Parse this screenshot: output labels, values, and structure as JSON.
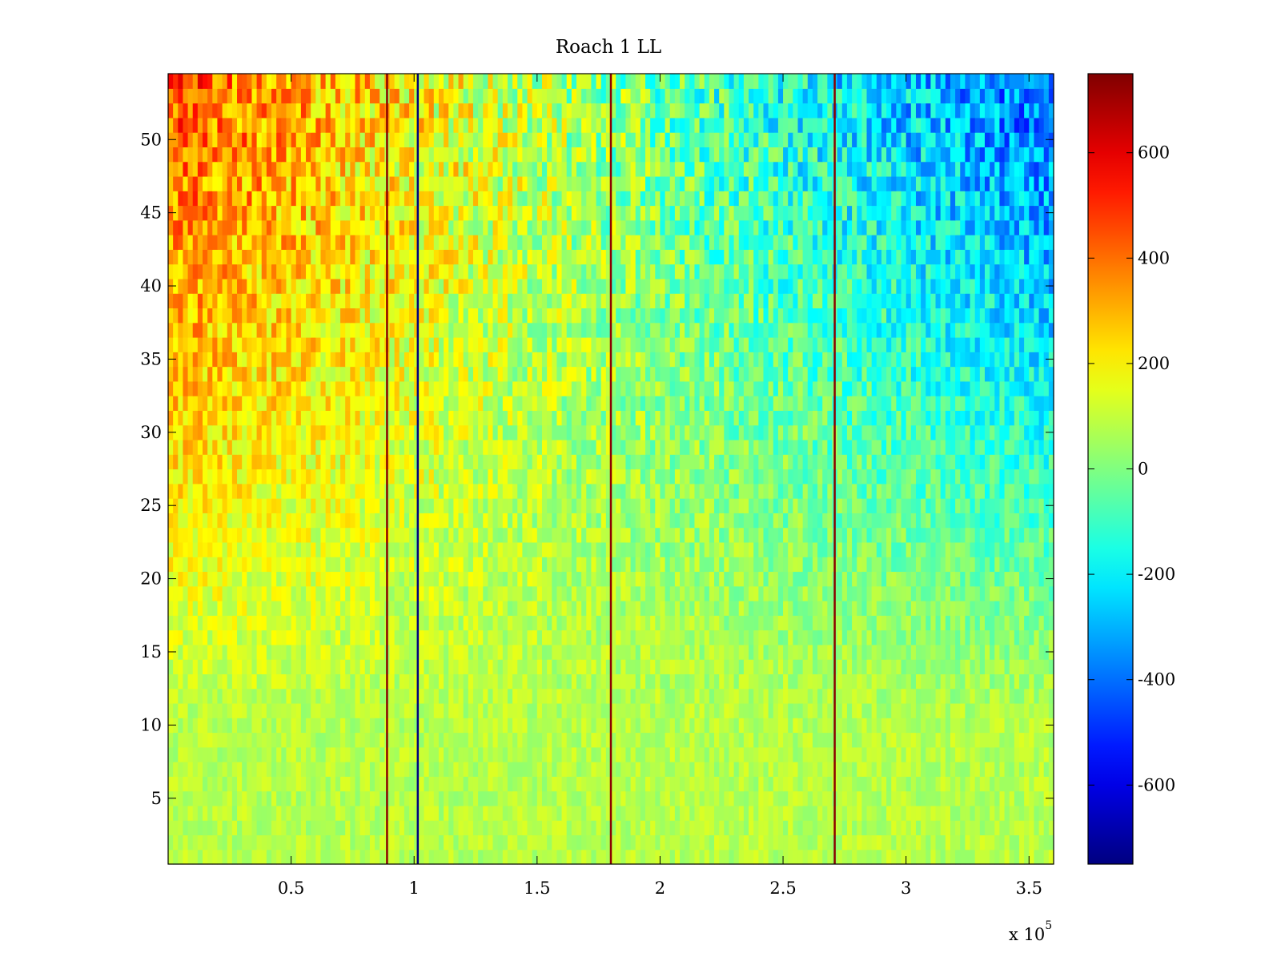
{
  "chart_data": {
    "type": "heatmap",
    "title": "Roach 1 LL",
    "xlabel": "",
    "ylabel": "",
    "x_exponent_label": "x 10",
    "x_exponent_power": "5",
    "xlim": [
      0,
      3.6
    ],
    "ylim": [
      0.5,
      54.5
    ],
    "x_ticks": [
      0.5,
      1,
      1.5,
      2,
      2.5,
      3,
      3.5
    ],
    "x_tick_labels": [
      "0.5",
      "1",
      "1.5",
      "2",
      "2.5",
      "3",
      "3.5"
    ],
    "y_ticks": [
      5,
      10,
      15,
      20,
      25,
      30,
      35,
      40,
      45,
      50
    ],
    "y_tick_labels": [
      "5",
      "10",
      "15",
      "20",
      "25",
      "30",
      "35",
      "40",
      "45",
      "50"
    ],
    "rows": 54,
    "colorbar": {
      "range": [
        -750,
        750
      ],
      "ticks": [
        -600,
        -400,
        -200,
        0,
        200,
        400,
        600
      ],
      "tick_labels": [
        "-600",
        "-400",
        "-200",
        "0",
        "200",
        "400",
        "600"
      ],
      "colormap": "jet"
    },
    "vertical_lines": [
      {
        "x": 0.89,
        "color": "#8b0000"
      },
      {
        "x": 1.015,
        "color": "#000080"
      },
      {
        "x": 1.8,
        "color": "#8b0000"
      },
      {
        "x": 2.71,
        "color": "#8b0000"
      }
    ],
    "trend_note_values": {
      "left_high_rows_value": 450,
      "right_high_rows_value": -420,
      "low_rows_value": 80
    }
  }
}
